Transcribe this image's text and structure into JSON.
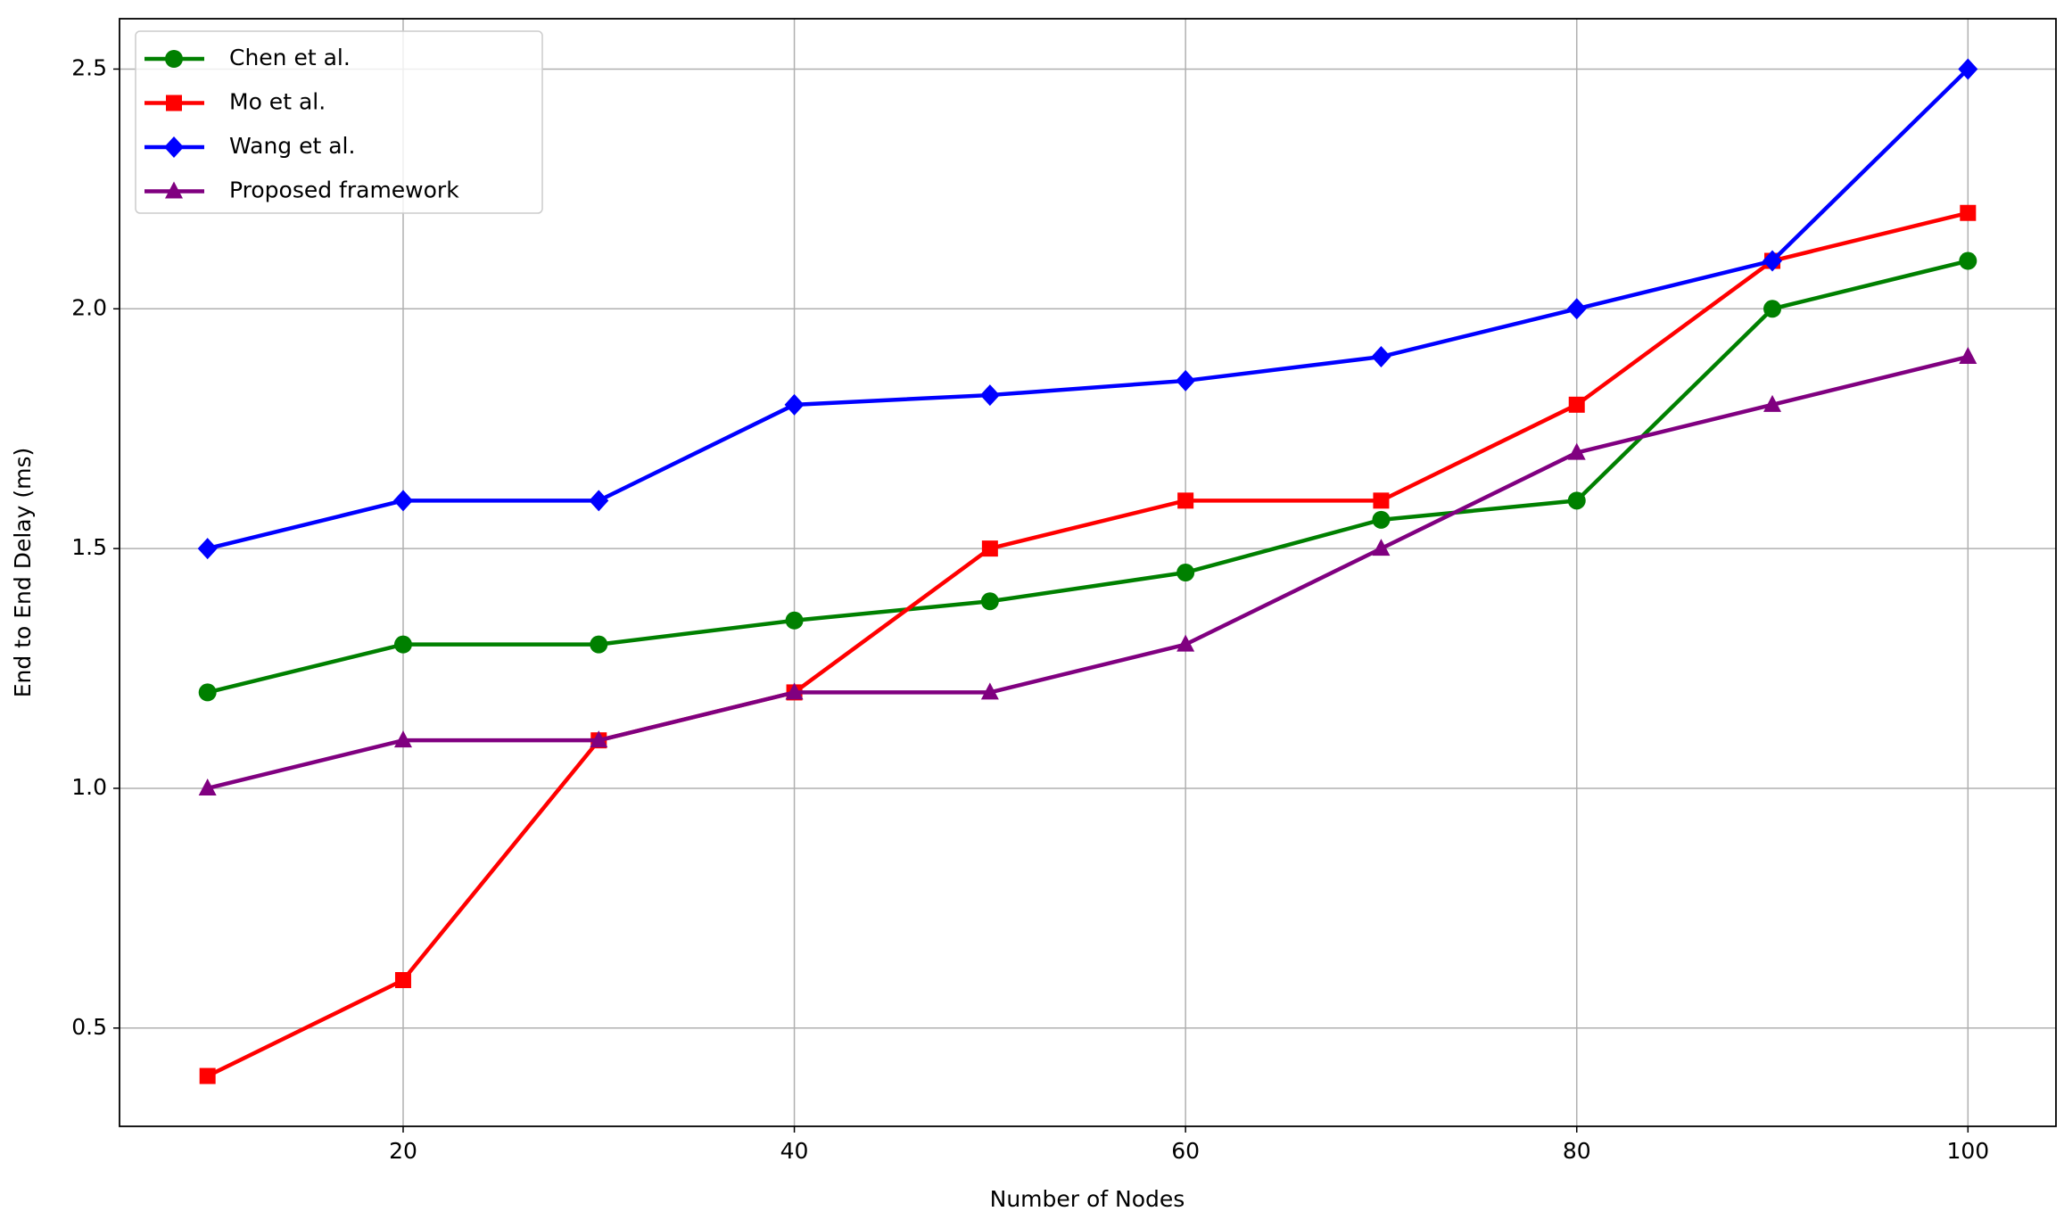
{
  "chart_data": {
    "type": "line",
    "xlabel": "Number of Nodes",
    "ylabel": "End to End Delay (ms)",
    "x": [
      10,
      20,
      30,
      40,
      50,
      60,
      70,
      80,
      90,
      100
    ],
    "series": [
      {
        "name": "Chen et al.",
        "color": "#008000",
        "marker": "circle",
        "values": [
          1.2,
          1.3,
          1.3,
          1.35,
          1.39,
          1.45,
          1.56,
          1.6,
          2.0,
          2.1
        ]
      },
      {
        "name": "Mo et al.",
        "color": "#ff0000",
        "marker": "square",
        "values": [
          0.4,
          0.6,
          1.1,
          1.2,
          1.5,
          1.6,
          1.6,
          1.8,
          2.1,
          2.2
        ]
      },
      {
        "name": "Wang et al.",
        "color": "#0000ff",
        "marker": "diamond",
        "values": [
          1.5,
          1.6,
          1.6,
          1.8,
          1.82,
          1.85,
          1.9,
          2.0,
          2.1,
          2.5
        ]
      },
      {
        "name": "Proposed framework",
        "color": "#800080",
        "marker": "triangle",
        "values": [
          1.0,
          1.1,
          1.1,
          1.2,
          1.2,
          1.3,
          1.5,
          1.7,
          1.8,
          1.9
        ]
      }
    ],
    "xlim": [
      5.5,
      104.5
    ],
    "xticks": [
      20,
      40,
      60,
      80,
      100
    ],
    "ylim": [
      0.295,
      2.605
    ],
    "yticks": [
      {
        "value": 0.5,
        "label": "0.5"
      },
      {
        "value": 1.0,
        "label": "1.0"
      },
      1.5,
      {
        "value": 2.0,
        "label": "2.0"
      },
      2.5
    ],
    "grid": true,
    "legend": "upper left"
  }
}
